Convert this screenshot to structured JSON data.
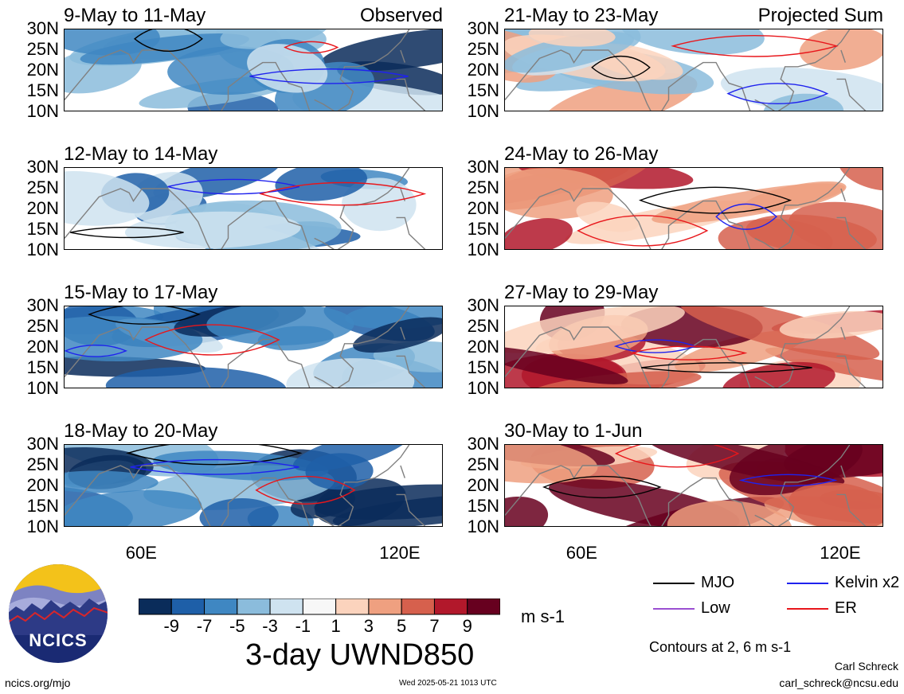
{
  "chart_data": {
    "type": "heatmap",
    "title": "3-day UWND850",
    "units": "m s-1",
    "columns": [
      {
        "label": "Observed",
        "panels": [
          "9-May to 11-May",
          "12-May to 14-May",
          "15-May to 17-May",
          "18-May to 20-May"
        ]
      },
      {
        "label": "Projected Sum",
        "panels": [
          "21-May to 23-May",
          "24-May to 26-May",
          "27-May to 29-May",
          "30-May to 1-Jun"
        ]
      }
    ],
    "y_axis": {
      "ticks": [
        "30N",
        "25N",
        "20N",
        "15N",
        "10N"
      ],
      "range": [
        10,
        30
      ]
    },
    "x_axis": {
      "ticks": [
        "60E",
        "120E"
      ],
      "range": [
        42,
        130
      ]
    },
    "colorbar": {
      "labels": [
        "-9",
        "-7",
        "-5",
        "-3",
        "-1",
        "1",
        "3",
        "5",
        "7",
        "9"
      ],
      "colors": [
        "#0a2c5a",
        "#1e5fa8",
        "#3f87c2",
        "#8bbcdc",
        "#cfe3f0",
        "#f7f7f7",
        "#fbd3bd",
        "#efa080",
        "#d6604d",
        "#b2182b",
        "#67001f"
      ]
    },
    "legend": [
      {
        "label": "MJO",
        "color": "#000000"
      },
      {
        "label": "Kelvin x2",
        "color": "#1f22ee"
      },
      {
        "label": "Low",
        "color": "#9b4fd1"
      },
      {
        "label": "ER",
        "color": "#e8161b"
      }
    ],
    "contour_note": "Contours at 2, 6 m s-1"
  },
  "footer": {
    "logo_text": "NCICS",
    "url": "ncics.org/mjo",
    "timestamp": "Wed 2025-05-21 1013 UTC",
    "author": "Carl Schreck",
    "email": "carl_schreck@ncsu.edu"
  },
  "colors": {
    "land": "#808080",
    "frame": "#000000"
  }
}
